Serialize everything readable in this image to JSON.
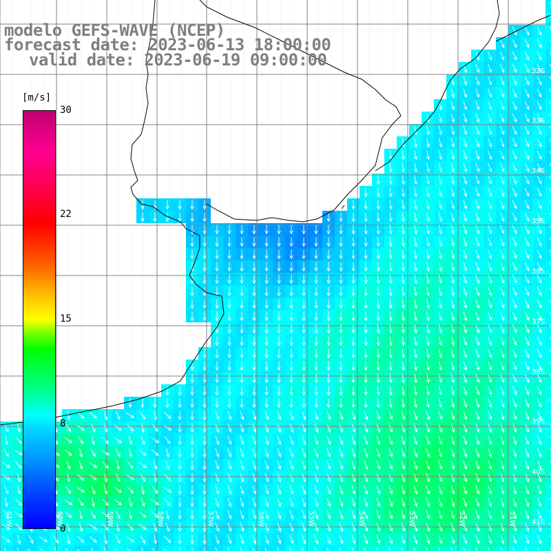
{
  "title": {
    "line1": "modelo GEFS-WAVE (NCEP)",
    "line2": "forecast date: 2023-06-13 18:00:00",
    "line3": "valid date: 2023-06-19 09:00:00"
  },
  "colorbar": {
    "unit": "[m/s]",
    "ticks": [
      "30",
      "22",
      "15",
      "8",
      "0"
    ],
    "min": 0,
    "max": 30
  },
  "latitude_labels": [
    "32S",
    "33S",
    "34S",
    "35S",
    "36S",
    "37S",
    "38S",
    "39S",
    "40S",
    "41S"
  ],
  "longitude_labels": [
    "61W",
    "60W",
    "59W",
    "58W",
    "57W",
    "56W",
    "55W",
    "54W",
    "53W",
    "52W",
    "51W"
  ],
  "colors": {
    "land": "#ffffff",
    "arrows": "#ffffff",
    "coastline": "#000000",
    "title": "#7f7f7f"
  }
}
